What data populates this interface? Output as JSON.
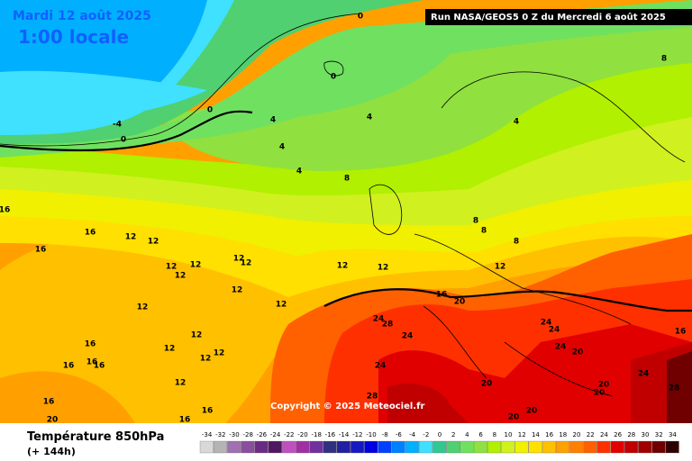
{
  "header": {
    "date": "Mardi 12 août 2025",
    "time": "1:00 locale",
    "run": "Run NASA/GEOS5 0 Z du Mercredi 6 août 2025"
  },
  "copyright": "Copyright © 2025 Meteociel.fr",
  "legend": {
    "title": "Température 850hPa",
    "subtitle": "(+ 144h)",
    "values": [
      -34,
      -32,
      -30,
      -28,
      -26,
      -24,
      -22,
      -20,
      -18,
      -16,
      -14,
      -12,
      -10,
      -8,
      -6,
      -4,
      -2,
      0,
      2,
      4,
      6,
      8,
      10,
      12,
      14,
      16,
      18,
      20,
      22,
      24,
      26,
      28,
      30,
      32,
      34
    ],
    "colors": [
      "#d8d8d8",
      "#b4b4b4",
      "#a070b0",
      "#8a4e9e",
      "#6a2c82",
      "#501860",
      "#c050c0",
      "#a030a0",
      "#7030a0",
      "#303080",
      "#2020a0",
      "#1818c0",
      "#0000e0",
      "#0040ff",
      "#0080ff",
      "#00b0ff",
      "#40e0ff",
      "#30c890",
      "#50d070",
      "#70e060",
      "#90e040",
      "#b0f000",
      "#d0f020",
      "#f0f000",
      "#ffe000",
      "#ffc000",
      "#ffa000",
      "#ff8000",
      "#ff6000",
      "#ff3000",
      "#e00000",
      "#c00000",
      "#a00000",
      "#700000",
      "#300000"
    ]
  },
  "contour_labels": [
    0,
    0,
    0,
    0,
    -4,
    4,
    4,
    4,
    4,
    8,
    8,
    4,
    8,
    8,
    8,
    12,
    12,
    12,
    16,
    16,
    12,
    12,
    12,
    12,
    12,
    12,
    12,
    12,
    12,
    12,
    12,
    12,
    12,
    12,
    12,
    16,
    20,
    24,
    28,
    24,
    24,
    28,
    24,
    24,
    24,
    20,
    16,
    24,
    28,
    20,
    20,
    20,
    20,
    20,
    16,
    16,
    16,
    16,
    16,
    20,
    16,
    16,
    16
  ]
}
